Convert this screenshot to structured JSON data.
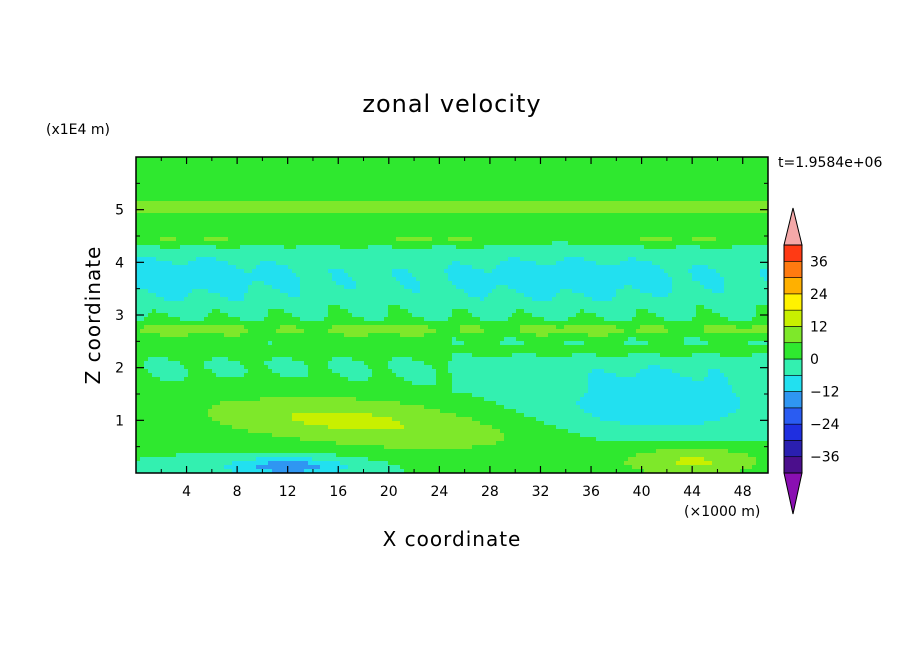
{
  "chart_data": {
    "type": "heatmap",
    "title": "zonal velocity",
    "xlabel": "X coordinate",
    "ylabel": "Z coordinate",
    "x_unit": "(×1000 m)",
    "y_unit": "(x1E4 m)",
    "time_label": "t=1.9584e+06",
    "xlim": [
      0,
      50
    ],
    "ylim": [
      0,
      6
    ],
    "xticks": [
      "4",
      "8",
      "12",
      "16",
      "20",
      "24",
      "28",
      "32",
      "36",
      "40",
      "44",
      "48"
    ],
    "xtick_values": [
      4,
      8,
      12,
      16,
      20,
      24,
      28,
      32,
      36,
      40,
      44,
      48
    ],
    "yticks": [
      "1",
      "2",
      "3",
      "4",
      "5"
    ],
    "ytick_values": [
      1,
      2,
      3,
      4,
      5
    ],
    "colorbar": {
      "labels": [
        "36",
        "24",
        "12",
        "0",
        "-12",
        "-24",
        "-36"
      ],
      "label_values": [
        36,
        24,
        12,
        0,
        -12,
        -24,
        -36
      ],
      "levels": [
        -42,
        -36,
        -30,
        -24,
        -18,
        -12,
        -6,
        0,
        6,
        12,
        18,
        24,
        30,
        36,
        42
      ],
      "colors": [
        "#4b0f8c",
        "#2a1fb0",
        "#1f2fe0",
        "#2a5cf2",
        "#2f96f2",
        "#22e0f0",
        "#33f0b0",
        "#2fe82f",
        "#7ee82a",
        "#c8f000",
        "#fff200",
        "#ffb000",
        "#ff7a10",
        "#ff3a14",
        "#ee1010"
      ],
      "over_color": "#f4a8a8",
      "under_color": "#8a0fb2"
    },
    "field_description": "values in m/s, approximate contour field",
    "colors": {
      "axis": "#000000",
      "background": "#ffffff"
    }
  }
}
